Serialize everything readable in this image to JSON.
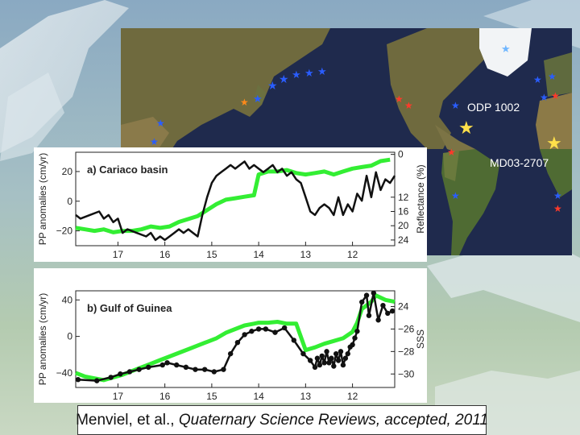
{
  "map": {
    "sites": [
      {
        "label": "ODP 1002"
      },
      {
        "label": "MD03-2707"
      }
    ]
  },
  "citation": {
    "authors": "Menviel, et al., ",
    "journal": "Quaternary Science Reviews, accepted, 2011"
  },
  "chart_data": [
    {
      "type": "line",
      "title": "a) Cariaco basin",
      "xlabel": "",
      "ylabel": "PP anomalies (cm/yr)",
      "ylabel_right": "Reflectance (%)",
      "x_axis_reversed": true,
      "xlim": [
        17.9,
        11.1
      ],
      "xticks": [
        "17",
        "16",
        "15",
        "14",
        "13",
        "12"
      ],
      "ylim_left": [
        -30,
        33
      ],
      "yticks_left": [
        "20",
        "0",
        "−20"
      ],
      "ylim_right": [
        25.6,
        -0.6
      ],
      "yticks_right": [
        "0",
        "12",
        "16",
        "20",
        "24"
      ],
      "series": [
        {
          "axis": "left",
          "color": "#33ee33",
          "points": [
            [
              17.9,
              -18
            ],
            [
              17.7,
              -19
            ],
            [
              17.5,
              -20
            ],
            [
              17.3,
              -19
            ],
            [
              17.1,
              -21
            ],
            [
              16.9,
              -20
            ],
            [
              16.7,
              -20
            ],
            [
              16.5,
              -19
            ],
            [
              16.3,
              -17
            ],
            [
              16.1,
              -18
            ],
            [
              15.9,
              -17
            ],
            [
              15.7,
              -14
            ],
            [
              15.5,
              -12
            ],
            [
              15.3,
              -10
            ],
            [
              15.1,
              -6
            ],
            [
              14.9,
              -2
            ],
            [
              14.7,
              1
            ],
            [
              14.5,
              2
            ],
            [
              14.3,
              3
            ],
            [
              14.1,
              4
            ],
            [
              14.0,
              18
            ],
            [
              13.8,
              20
            ],
            [
              13.6,
              20
            ],
            [
              13.4,
              21
            ],
            [
              13.2,
              19
            ],
            [
              13.0,
              18
            ],
            [
              12.8,
              19
            ],
            [
              12.6,
              20
            ],
            [
              12.4,
              18
            ],
            [
              12.2,
              20
            ],
            [
              12.0,
              22
            ],
            [
              11.8,
              23
            ],
            [
              11.6,
              24
            ],
            [
              11.4,
              27
            ],
            [
              11.2,
              28
            ]
          ]
        },
        {
          "axis": "right",
          "color": "#111111",
          "points": [
            [
              17.9,
              17
            ],
            [
              17.8,
              18
            ],
            [
              17.6,
              17
            ],
            [
              17.4,
              16
            ],
            [
              17.3,
              18
            ],
            [
              17.2,
              17
            ],
            [
              17.1,
              19
            ],
            [
              17.0,
              18
            ],
            [
              16.9,
              22
            ],
            [
              16.8,
              21
            ],
            [
              16.6,
              22
            ],
            [
              16.4,
              23
            ],
            [
              16.3,
              22
            ],
            [
              16.2,
              24
            ],
            [
              16.1,
              23
            ],
            [
              16.0,
              24
            ],
            [
              15.9,
              23
            ],
            [
              15.8,
              22
            ],
            [
              15.7,
              21
            ],
            [
              15.6,
              22
            ],
            [
              15.5,
              21
            ],
            [
              15.4,
              22
            ],
            [
              15.3,
              23
            ],
            [
              15.2,
              17
            ],
            [
              15.1,
              12
            ],
            [
              15.0,
              8
            ],
            [
              14.9,
              6
            ],
            [
              14.8,
              5
            ],
            [
              14.7,
              4
            ],
            [
              14.6,
              3
            ],
            [
              14.5,
              4
            ],
            [
              14.4,
              3
            ],
            [
              14.3,
              2
            ],
            [
              14.2,
              4
            ],
            [
              14.1,
              3
            ],
            [
              14.0,
              4
            ],
            [
              13.9,
              5
            ],
            [
              13.8,
              4
            ],
            [
              13.7,
              3
            ],
            [
              13.6,
              5
            ],
            [
              13.5,
              4
            ],
            [
              13.4,
              6
            ],
            [
              13.3,
              5
            ],
            [
              13.2,
              7
            ],
            [
              13.1,
              8
            ],
            [
              13.0,
              12
            ],
            [
              12.9,
              16
            ],
            [
              12.8,
              17
            ],
            [
              12.7,
              15
            ],
            [
              12.6,
              14
            ],
            [
              12.5,
              15
            ],
            [
              12.4,
              17
            ],
            [
              12.3,
              12
            ],
            [
              12.2,
              17
            ],
            [
              12.1,
              14
            ],
            [
              12.0,
              16
            ],
            [
              11.9,
              11
            ],
            [
              11.8,
              13
            ],
            [
              11.7,
              6
            ],
            [
              11.6,
              12
            ],
            [
              11.5,
              5
            ],
            [
              11.4,
              10
            ],
            [
              11.3,
              7
            ],
            [
              11.2,
              8
            ],
            [
              11.1,
              6
            ]
          ]
        }
      ]
    },
    {
      "type": "line",
      "title": "b) Gulf of Guinea",
      "xlabel": "",
      "ylabel": "PP anomalies (cm/yr)",
      "ylabel_right": "SSS",
      "x_axis_reversed": true,
      "xlim": [
        17.9,
        11.1
      ],
      "xticks": [
        "17",
        "16",
        "15",
        "14",
        "13",
        "12"
      ],
      "ylim_left": [
        -56,
        50
      ],
      "yticks_left": [
        "40",
        "0",
        "−40"
      ],
      "ylim_right": [
        31.2,
        22.6
      ],
      "yticks_right": [
        "24",
        "−26",
        "−28",
        "−30"
      ],
      "series": [
        {
          "axis": "left",
          "color": "#33ee33",
          "points": [
            [
              17.9,
              -40
            ],
            [
              17.7,
              -44
            ],
            [
              17.5,
              -46
            ],
            [
              17.3,
              -48
            ],
            [
              17.1,
              -45
            ],
            [
              16.9,
              -42
            ],
            [
              16.7,
              -38
            ],
            [
              16.5,
              -34
            ],
            [
              16.3,
              -30
            ],
            [
              16.1,
              -26
            ],
            [
              15.9,
              -22
            ],
            [
              15.7,
              -18
            ],
            [
              15.5,
              -14
            ],
            [
              15.3,
              -10
            ],
            [
              15.1,
              -6
            ],
            [
              14.9,
              -2
            ],
            [
              14.7,
              4
            ],
            [
              14.5,
              8
            ],
            [
              14.3,
              12
            ],
            [
              14.1,
              14
            ],
            [
              14.0,
              15
            ],
            [
              13.8,
              15
            ],
            [
              13.6,
              16
            ],
            [
              13.4,
              14
            ],
            [
              13.2,
              14
            ],
            [
              13.0,
              -15
            ],
            [
              12.8,
              -12
            ],
            [
              12.6,
              -8
            ],
            [
              12.4,
              -5
            ],
            [
              12.2,
              -2
            ],
            [
              12.0,
              5
            ],
            [
              11.9,
              15
            ],
            [
              11.8,
              30
            ],
            [
              11.6,
              38
            ],
            [
              11.5,
              45
            ],
            [
              11.3,
              40
            ],
            [
              11.1,
              38
            ]
          ]
        },
        {
          "axis": "right",
          "color": "#111111",
          "points": [
            [
              17.85,
              30.5
            ],
            [
              17.45,
              30.6
            ],
            [
              17.15,
              30.3
            ],
            [
              16.95,
              30.0
            ],
            [
              16.75,
              29.8
            ],
            [
              16.55,
              29.6
            ],
            [
              16.35,
              29.4
            ],
            [
              16.05,
              29.2
            ],
            [
              15.95,
              29.0
            ],
            [
              15.75,
              29.2
            ],
            [
              15.55,
              29.4
            ],
            [
              15.35,
              29.6
            ],
            [
              15.15,
              29.6
            ],
            [
              14.95,
              29.8
            ],
            [
              14.75,
              29.6
            ],
            [
              14.6,
              28.2
            ],
            [
              14.45,
              27.2
            ],
            [
              14.3,
              26.5
            ],
            [
              14.15,
              26.2
            ],
            [
              14.0,
              26.0
            ],
            [
              13.85,
              26.0
            ],
            [
              13.65,
              26.3
            ],
            [
              13.45,
              25.9
            ],
            [
              13.25,
              27.0
            ],
            [
              13.05,
              28.2
            ],
            [
              12.9,
              28.8
            ],
            [
              12.8,
              29.4
            ],
            [
              12.75,
              28.6
            ],
            [
              12.7,
              29.2
            ],
            [
              12.65,
              28.4
            ],
            [
              12.6,
              29.0
            ],
            [
              12.55,
              28.0
            ],
            [
              12.5,
              29.0
            ],
            [
              12.45,
              28.6
            ],
            [
              12.4,
              29.3
            ],
            [
              12.35,
              28.2
            ],
            [
              12.3,
              28.8
            ],
            [
              12.25,
              28.0
            ],
            [
              12.2,
              29.2
            ],
            [
              12.15,
              28.6
            ],
            [
              12.1,
              28.2
            ],
            [
              12.05,
              27.6
            ],
            [
              12.0,
              27.4
            ],
            [
              11.95,
              26.8
            ],
            [
              11.9,
              26.2
            ],
            [
              11.8,
              23.6
            ],
            [
              11.7,
              23.0
            ],
            [
              11.65,
              24.8
            ],
            [
              11.55,
              22.8
            ],
            [
              11.45,
              25.2
            ],
            [
              11.35,
              23.9
            ],
            [
              11.25,
              24.6
            ],
            [
              11.15,
              24.4
            ]
          ]
        }
      ]
    }
  ]
}
